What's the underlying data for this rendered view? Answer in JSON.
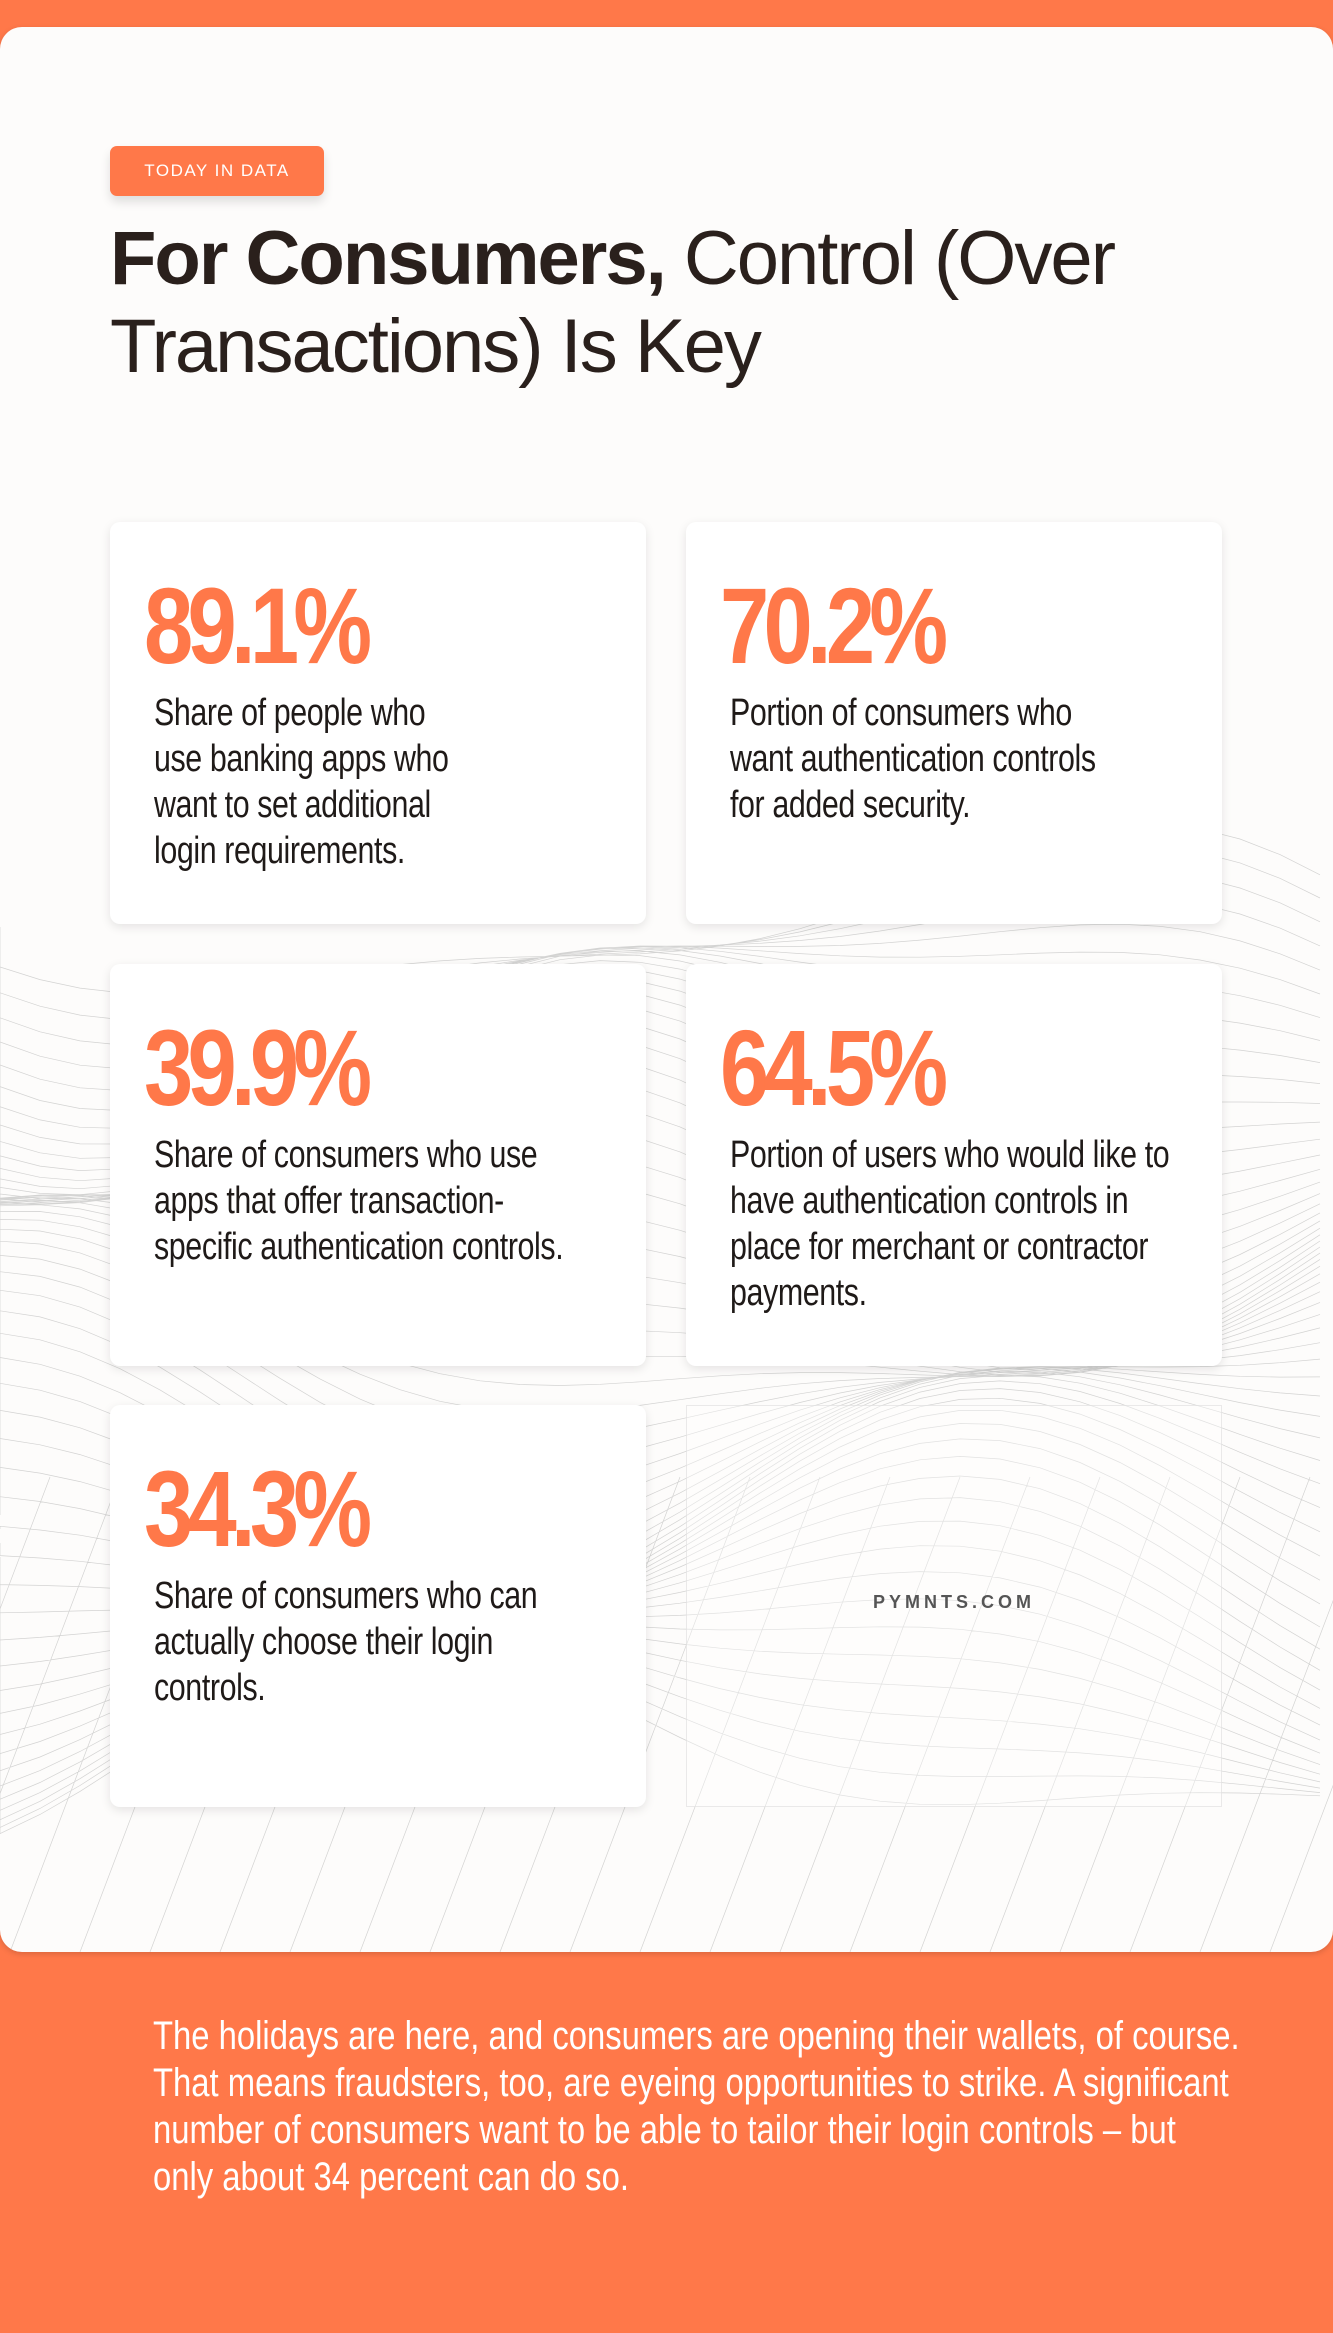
{
  "header": {
    "badge": "TODAY IN DATA",
    "title_bold": "For Consumers,",
    "title_light": "Control (Over Transactions) Is Key"
  },
  "stats": [
    {
      "value": "89.1%",
      "description": "Share of people who use banking apps who want to set additional login requirements."
    },
    {
      "value": "70.2%",
      "description": "Portion of consumers who want authentication controls for added security."
    },
    {
      "value": "39.9%",
      "description": "Share of consumers who use apps that offer transaction-specific authentication controls."
    },
    {
      "value": "64.5%",
      "description": "Portion of users who would like to have authentication controls in place for merchant or contractor payments."
    },
    {
      "value": "34.3%",
      "description": "Share of consumers who can actually choose their login controls."
    }
  ],
  "brand": "PYMNTS.COM",
  "footer": "The holidays are here, and consumers are opening their wallets, of course.  That means fraudsters, too, are eyeing opportunities to strike. A significant number of consumers want to be able to tailor their login controls – but only about 34 percent can do so.",
  "colors": {
    "accent": "#FF7849",
    "text": "#2a201c"
  }
}
